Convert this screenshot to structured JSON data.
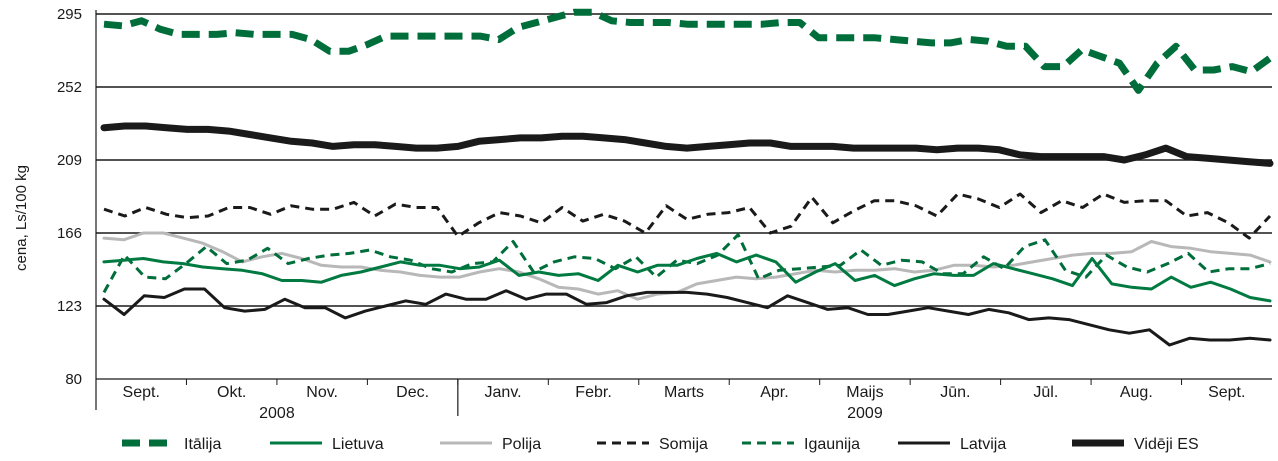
{
  "chart_data": {
    "type": "line",
    "title": "",
    "xlabel": "",
    "ylabel": "cena, Ls/100 kg",
    "ylim": [
      80,
      295
    ],
    "yticks": [
      80,
      123,
      166,
      209,
      252,
      295
    ],
    "grid": "horizontal",
    "legend_position": "bottom",
    "months": [
      "Sept.",
      "Okt.",
      "Nov.",
      "Dec.",
      "Janv.",
      "Febr.",
      "Marts",
      "Apr.",
      "Maijs",
      "Jūn.",
      "Jūl.",
      "Aug.",
      "Sept."
    ],
    "years": [
      "2008",
      "2009"
    ],
    "x_unit": "week",
    "series": [
      {
        "name": "Itālija",
        "color": "#006e3a",
        "style": "thick-dashed",
        "values": [
          289,
          288,
          291,
          286,
          283,
          283,
          283,
          284,
          283,
          283,
          283,
          280,
          273,
          273,
          277,
          282,
          282,
          282,
          282,
          282,
          282,
          280,
          287,
          290,
          293,
          296,
          296,
          291,
          290,
          290,
          290,
          289,
          289,
          289,
          289,
          289,
          290,
          290,
          281,
          281,
          281,
          281,
          280,
          279,
          278,
          278,
          280,
          279,
          276,
          276,
          264,
          264,
          274,
          270,
          266,
          250,
          266,
          276,
          262,
          262,
          264,
          261,
          269
        ]
      },
      {
        "name": "Lietuva",
        "color": "#007a40",
        "style": "solid",
        "values": [
          149,
          150,
          151,
          149,
          148,
          146,
          145,
          144,
          142,
          138,
          138,
          137,
          141,
          143,
          146,
          149,
          147,
          147,
          145,
          146,
          150,
          141,
          143,
          141,
          142,
          138,
          147,
          143,
          147,
          147,
          151,
          154,
          149,
          153,
          149,
          137,
          143,
          148,
          138,
          141,
          135,
          139,
          142,
          141,
          141,
          148,
          145,
          142,
          139,
          135,
          151,
          136,
          134,
          133,
          140,
          134,
          137,
          133,
          128,
          126
        ]
      },
      {
        "name": "Polija",
        "color": "#b8b8b8",
        "style": "solid",
        "values": [
          163,
          162,
          166,
          166,
          163,
          160,
          155,
          149,
          152,
          154,
          151,
          147,
          146,
          146,
          144,
          143,
          141,
          140,
          140,
          143,
          145,
          143,
          139,
          134,
          133,
          130,
          132,
          127,
          130,
          131,
          136,
          138,
          140,
          139,
          140,
          142,
          144,
          143,
          144,
          144,
          145,
          143,
          144,
          147,
          147,
          146,
          147,
          149,
          151,
          153,
          154,
          154,
          155,
          161,
          158,
          157,
          155,
          154,
          153,
          149
        ]
      },
      {
        "name": "Somija",
        "color": "#1a1a1a",
        "style": "dashed",
        "values": [
          180,
          176,
          181,
          177,
          175,
          176,
          181,
          181,
          177,
          182,
          180,
          180,
          184,
          176,
          183,
          181,
          181,
          164,
          172,
          178,
          176,
          172,
          181,
          173,
          177,
          173,
          166,
          182,
          174,
          177,
          178,
          181,
          166,
          170,
          187,
          172,
          179,
          185,
          185,
          182,
          176,
          189,
          186,
          181,
          189,
          178,
          185,
          181,
          189,
          184,
          185,
          185,
          176,
          178,
          172,
          163,
          176
        ]
      },
      {
        "name": "Igaunija",
        "color": "#006e3a",
        "style": "dashed",
        "values": [
          131,
          153,
          140,
          139,
          148,
          158,
          148,
          150,
          157,
          148,
          151,
          153,
          154,
          156,
          152,
          150,
          145,
          143,
          148,
          149,
          161,
          143,
          149,
          152,
          151,
          145,
          152,
          140,
          150,
          148,
          153,
          165,
          139,
          144,
          145,
          146,
          147,
          156,
          147,
          150,
          149,
          142,
          142,
          152,
          145,
          158,
          162,
          144,
          140,
          153,
          146,
          143,
          148,
          154,
          143,
          145,
          145,
          148
        ]
      },
      {
        "name": "Latvija",
        "color": "#1a1a1a",
        "style": "solid",
        "values": [
          127,
          118,
          129,
          128,
          133,
          133,
          122,
          120,
          121,
          127,
          122,
          122,
          116,
          120,
          123,
          126,
          124,
          130,
          127,
          127,
          132,
          127,
          130,
          130,
          124,
          125,
          129,
          131,
          131,
          131,
          130,
          128,
          125,
          122,
          129,
          125,
          121,
          122,
          118,
          118,
          120,
          122,
          120,
          118,
          121,
          119,
          115,
          116,
          115,
          112,
          109,
          107,
          109,
          100,
          104,
          103,
          103,
          104,
          103
        ]
      },
      {
        "name": "Vidēji ES",
        "color": "#1a1a1a",
        "style": "thick-solid",
        "values": [
          228,
          229,
          229,
          228,
          227,
          227,
          226,
          224,
          222,
          220,
          219,
          217,
          218,
          218,
          217,
          216,
          216,
          217,
          220,
          221,
          222,
          222,
          223,
          223,
          222,
          221,
          219,
          217,
          216,
          217,
          218,
          219,
          219,
          217,
          217,
          217,
          216,
          216,
          216,
          216,
          215,
          216,
          216,
          215,
          212,
          211,
          211,
          211,
          211,
          209,
          212,
          216,
          211,
          210,
          209,
          208,
          207
        ]
      }
    ]
  }
}
